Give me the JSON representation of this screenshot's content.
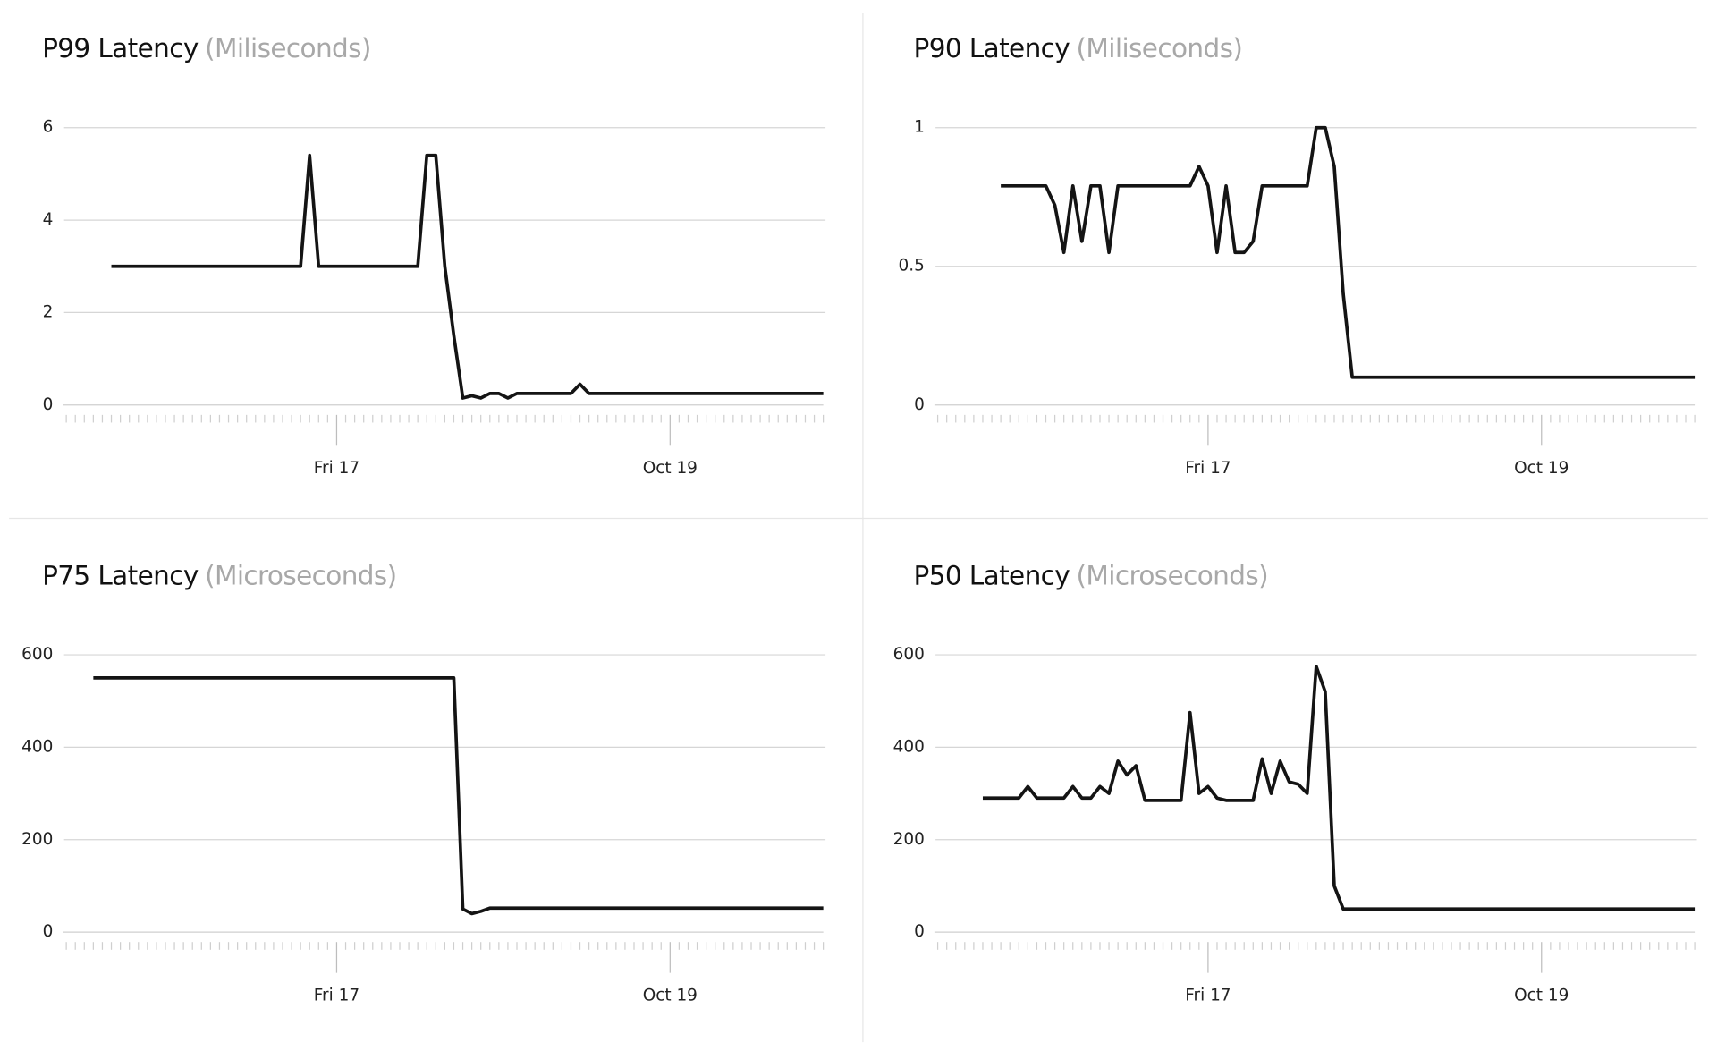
{
  "chart_data": [
    {
      "type": "line",
      "title": "P99 Latency",
      "subtitle": "(Miliseconds)",
      "color": "#141414",
      "grid": true,
      "ylim": [
        0,
        6
      ],
      "yticks": [
        0,
        2,
        4,
        6
      ],
      "categories": [
        null,
        null,
        null,
        null,
        null,
        null,
        null,
        null,
        null,
        null,
        null,
        null,
        null,
        null,
        null,
        null,
        null,
        null,
        null,
        null,
        null,
        null,
        null,
        null,
        null,
        null,
        null,
        null,
        null,
        null,
        "Fri 17",
        null,
        null,
        null,
        null,
        null,
        null,
        null,
        null,
        null,
        null,
        null,
        null,
        null,
        null,
        null,
        null,
        null,
        null,
        null,
        null,
        null,
        null,
        null,
        null,
        null,
        null,
        null,
        null,
        null,
        null,
        null,
        null,
        null,
        null,
        null,
        null,
        "Oct 19",
        null,
        null,
        null,
        null,
        null,
        null,
        null,
        null,
        null,
        null,
        null,
        null,
        null,
        null,
        null,
        null,
        null
      ],
      "values": [
        null,
        null,
        null,
        null,
        null,
        3,
        3,
        3,
        3,
        3,
        3,
        3,
        3,
        3,
        3,
        3,
        3,
        3,
        3,
        3,
        3,
        3,
        3,
        3,
        3,
        3,
        3,
        5.4,
        3,
        3,
        3,
        3,
        3,
        3,
        3,
        3,
        3,
        3,
        3,
        3,
        5.4,
        5.4,
        3,
        1.5,
        0.15,
        0.2,
        0.15,
        0.25,
        0.25,
        0.15,
        0.25,
        0.25,
        0.25,
        0.25,
        0.25,
        0.25,
        0.25,
        0.45,
        0.25,
        0.25,
        0.25,
        0.25,
        0.25,
        0.25,
        0.25,
        0.25,
        0.25,
        0.25,
        0.25,
        0.25,
        0.25,
        0.25,
        0.25,
        0.25,
        0.25,
        0.25,
        0.25,
        0.25,
        0.25,
        0.25,
        0.25,
        0.25,
        0.25,
        0.25,
        0.25
      ]
    },
    {
      "type": "line",
      "title": "P90 Latency",
      "subtitle": "(Miliseconds)",
      "color": "#141414",
      "grid": true,
      "ylim": [
        0,
        1
      ],
      "yticks": [
        0,
        0.5,
        1
      ],
      "categories": [
        null,
        null,
        null,
        null,
        null,
        null,
        null,
        null,
        null,
        null,
        null,
        null,
        null,
        null,
        null,
        null,
        null,
        null,
        null,
        null,
        null,
        null,
        null,
        null,
        null,
        null,
        null,
        null,
        null,
        null,
        "Fri 17",
        null,
        null,
        null,
        null,
        null,
        null,
        null,
        null,
        null,
        null,
        null,
        null,
        null,
        null,
        null,
        null,
        null,
        null,
        null,
        null,
        null,
        null,
        null,
        null,
        null,
        null,
        null,
        null,
        null,
        null,
        null,
        null,
        null,
        null,
        null,
        null,
        "Oct 19",
        null,
        null,
        null,
        null,
        null,
        null,
        null,
        null,
        null,
        null,
        null,
        null,
        null,
        null,
        null,
        null,
        null
      ],
      "values": [
        null,
        null,
        null,
        null,
        null,
        null,
        null,
        0.79,
        0.79,
        0.79,
        0.79,
        0.79,
        0.79,
        0.72,
        0.55,
        0.79,
        0.59,
        0.79,
        0.79,
        0.55,
        0.79,
        0.79,
        0.79,
        0.79,
        0.79,
        0.79,
        0.79,
        0.79,
        0.79,
        0.86,
        0.79,
        0.55,
        0.79,
        0.55,
        0.55,
        0.59,
        0.79,
        0.79,
        0.79,
        0.79,
        0.79,
        0.79,
        1,
        1,
        0.86,
        0.4,
        0.1,
        0.1,
        0.1,
        0.1,
        0.1,
        0.1,
        0.1,
        0.1,
        0.1,
        0.1,
        0.1,
        0.1,
        0.1,
        0.1,
        0.1,
        0.1,
        0.1,
        0.1,
        0.1,
        0.1,
        0.1,
        0.1,
        0.1,
        0.1,
        0.1,
        0.1,
        0.1,
        0.1,
        0.1,
        0.1,
        0.1,
        0.1,
        0.1,
        0.1,
        0.1,
        0.1,
        0.1,
        0.1,
        0.1
      ]
    },
    {
      "type": "line",
      "title": "P75 Latency",
      "subtitle": "(Microseconds)",
      "color": "#141414",
      "grid": true,
      "ylim": [
        0,
        600
      ],
      "yticks": [
        0,
        200,
        400,
        600
      ],
      "categories": [
        null,
        null,
        null,
        null,
        null,
        null,
        null,
        null,
        null,
        null,
        null,
        null,
        null,
        null,
        null,
        null,
        null,
        null,
        null,
        null,
        null,
        null,
        null,
        null,
        null,
        null,
        null,
        null,
        null,
        null,
        "Fri 17",
        null,
        null,
        null,
        null,
        null,
        null,
        null,
        null,
        null,
        null,
        null,
        null,
        null,
        null,
        null,
        null,
        null,
        null,
        null,
        null,
        null,
        null,
        null,
        null,
        null,
        null,
        null,
        null,
        null,
        null,
        null,
        null,
        null,
        null,
        null,
        null,
        "Oct 19",
        null,
        null,
        null,
        null,
        null,
        null,
        null,
        null,
        null,
        null,
        null,
        null,
        null,
        null,
        null,
        null,
        null
      ],
      "values": [
        null,
        null,
        null,
        550,
        550,
        550,
        550,
        550,
        550,
        550,
        550,
        550,
        550,
        550,
        550,
        550,
        550,
        550,
        550,
        550,
        550,
        550,
        550,
        550,
        550,
        550,
        550,
        550,
        550,
        550,
        550,
        550,
        550,
        550,
        550,
        550,
        550,
        550,
        550,
        550,
        550,
        550,
        550,
        550,
        50,
        40,
        45,
        52,
        52,
        52,
        52,
        52,
        52,
        52,
        52,
        52,
        52,
        52,
        52,
        52,
        52,
        52,
        52,
        52,
        52,
        52,
        52,
        52,
        52,
        52,
        52,
        52,
        52,
        52,
        52,
        52,
        52,
        52,
        52,
        52,
        52,
        52,
        52,
        52,
        52
      ]
    },
    {
      "type": "line",
      "title": "P50 Latency",
      "subtitle": "(Microseconds)",
      "color": "#141414",
      "grid": true,
      "ylim": [
        0,
        600
      ],
      "yticks": [
        0,
        200,
        400,
        600
      ],
      "categories": [
        null,
        null,
        null,
        null,
        null,
        null,
        null,
        null,
        null,
        null,
        null,
        null,
        null,
        null,
        null,
        null,
        null,
        null,
        null,
        null,
        null,
        null,
        null,
        null,
        null,
        null,
        null,
        null,
        null,
        null,
        "Fri 17",
        null,
        null,
        null,
        null,
        null,
        null,
        null,
        null,
        null,
        null,
        null,
        null,
        null,
        null,
        null,
        null,
        null,
        null,
        null,
        null,
        null,
        null,
        null,
        null,
        null,
        null,
        null,
        null,
        null,
        null,
        null,
        null,
        null,
        null,
        null,
        null,
        "Oct 19",
        null,
        null,
        null,
        null,
        null,
        null,
        null,
        null,
        null,
        null,
        null,
        null,
        null,
        null,
        null,
        null,
        null
      ],
      "values": [
        null,
        null,
        null,
        null,
        null,
        290,
        290,
        290,
        290,
        290,
        315,
        290,
        290,
        290,
        290,
        315,
        290,
        290,
        315,
        300,
        370,
        340,
        360,
        285,
        285,
        285,
        285,
        285,
        475,
        300,
        315,
        290,
        285,
        285,
        285,
        285,
        375,
        300,
        370,
        325,
        320,
        300,
        575,
        520,
        100,
        50,
        50,
        50,
        50,
        50,
        50,
        50,
        50,
        50,
        50,
        50,
        50,
        50,
        50,
        50,
        50,
        50,
        50,
        50,
        50,
        50,
        50,
        50,
        50,
        50,
        50,
        50,
        50,
        50,
        50,
        50,
        50,
        50,
        50,
        50,
        50,
        50,
        50,
        50,
        50
      ]
    }
  ]
}
